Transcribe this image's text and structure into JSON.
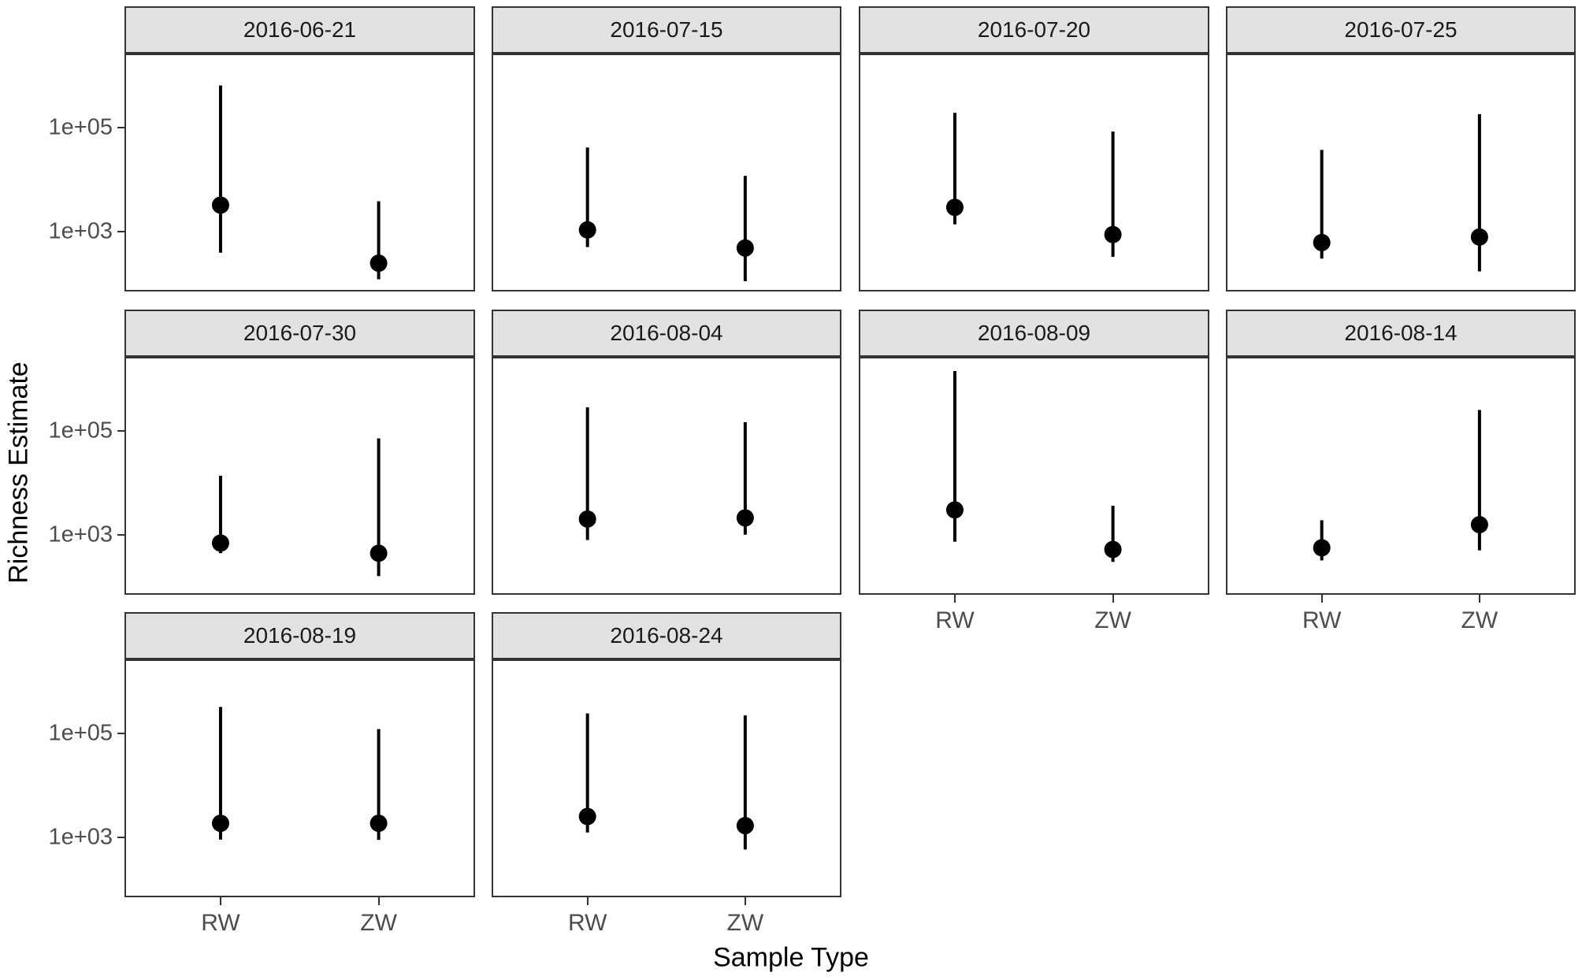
{
  "figure": {
    "y_axis_title": "Richness Estimate",
    "x_axis_title": "Sample Type",
    "y_tick_labels": [
      "1e+05",
      "1e+03"
    ],
    "x_tick_labels": [
      "RW",
      "ZW"
    ]
  },
  "colors": {
    "point": "#000000",
    "error_bar": "#000000",
    "strip_background": "#E2E2E2",
    "panel_border": "#333333",
    "tick_label": "#4D4D4D",
    "axis_title": "#000000"
  },
  "chart_data": {
    "type": "scatter",
    "subtype": "pointrange-faceted",
    "xlabel": "Sample Type",
    "ylabel": "Richness Estimate",
    "x_categories": [
      "RW",
      "ZW"
    ],
    "y_scale": "log10",
    "y_ticks": [
      100000,
      1000
    ],
    "y_tick_labels": [
      "1e+05",
      "1e+03"
    ],
    "ylim": [
      75,
      2450000
    ],
    "grid": "off",
    "facet_by": "date",
    "facets": [
      {
        "date": "2016-06-21",
        "series": [
          {
            "x": "RW",
            "estimate": 3200,
            "lower": 390,
            "upper": 640000
          },
          {
            "x": "ZW",
            "estimate": 245,
            "lower": 120,
            "upper": 3800
          }
        ]
      },
      {
        "date": "2016-07-15",
        "series": [
          {
            "x": "RW",
            "estimate": 1070,
            "lower": 500,
            "upper": 41000
          },
          {
            "x": "ZW",
            "estimate": 480,
            "lower": 110,
            "upper": 11700
          }
        ]
      },
      {
        "date": "2016-07-20",
        "series": [
          {
            "x": "RW",
            "estimate": 2900,
            "lower": 1370,
            "upper": 190000
          },
          {
            "x": "ZW",
            "estimate": 870,
            "lower": 325,
            "upper": 83000
          }
        ]
      },
      {
        "date": "2016-07-25",
        "series": [
          {
            "x": "RW",
            "estimate": 610,
            "lower": 300,
            "upper": 37000
          },
          {
            "x": "ZW",
            "estimate": 780,
            "lower": 170,
            "upper": 180000
          }
        ]
      },
      {
        "date": "2016-07-30",
        "series": [
          {
            "x": "RW",
            "estimate": 690,
            "lower": 440,
            "upper": 13600
          },
          {
            "x": "ZW",
            "estimate": 440,
            "lower": 160,
            "upper": 71000
          }
        ]
      },
      {
        "date": "2016-08-04",
        "series": [
          {
            "x": "RW",
            "estimate": 2000,
            "lower": 790,
            "upper": 280000
          },
          {
            "x": "ZW",
            "estimate": 2100,
            "lower": 1000,
            "upper": 146000
          }
        ]
      },
      {
        "date": "2016-08-09",
        "series": [
          {
            "x": "RW",
            "estimate": 3000,
            "lower": 735,
            "upper": 1400000
          },
          {
            "x": "ZW",
            "estimate": 520,
            "lower": 300,
            "upper": 3600
          }
        ]
      },
      {
        "date": "2016-08-14",
        "series": [
          {
            "x": "RW",
            "estimate": 560,
            "lower": 320,
            "upper": 1900
          },
          {
            "x": "ZW",
            "estimate": 1560,
            "lower": 500,
            "upper": 250000
          }
        ]
      },
      {
        "date": "2016-08-19",
        "series": [
          {
            "x": "RW",
            "estimate": 1850,
            "lower": 900,
            "upper": 320000
          },
          {
            "x": "ZW",
            "estimate": 1850,
            "lower": 890,
            "upper": 120000
          }
        ]
      },
      {
        "date": "2016-08-24",
        "series": [
          {
            "x": "RW",
            "estimate": 2500,
            "lower": 1230,
            "upper": 240000
          },
          {
            "x": "ZW",
            "estimate": 1670,
            "lower": 580,
            "upper": 220000
          }
        ]
      }
    ]
  }
}
